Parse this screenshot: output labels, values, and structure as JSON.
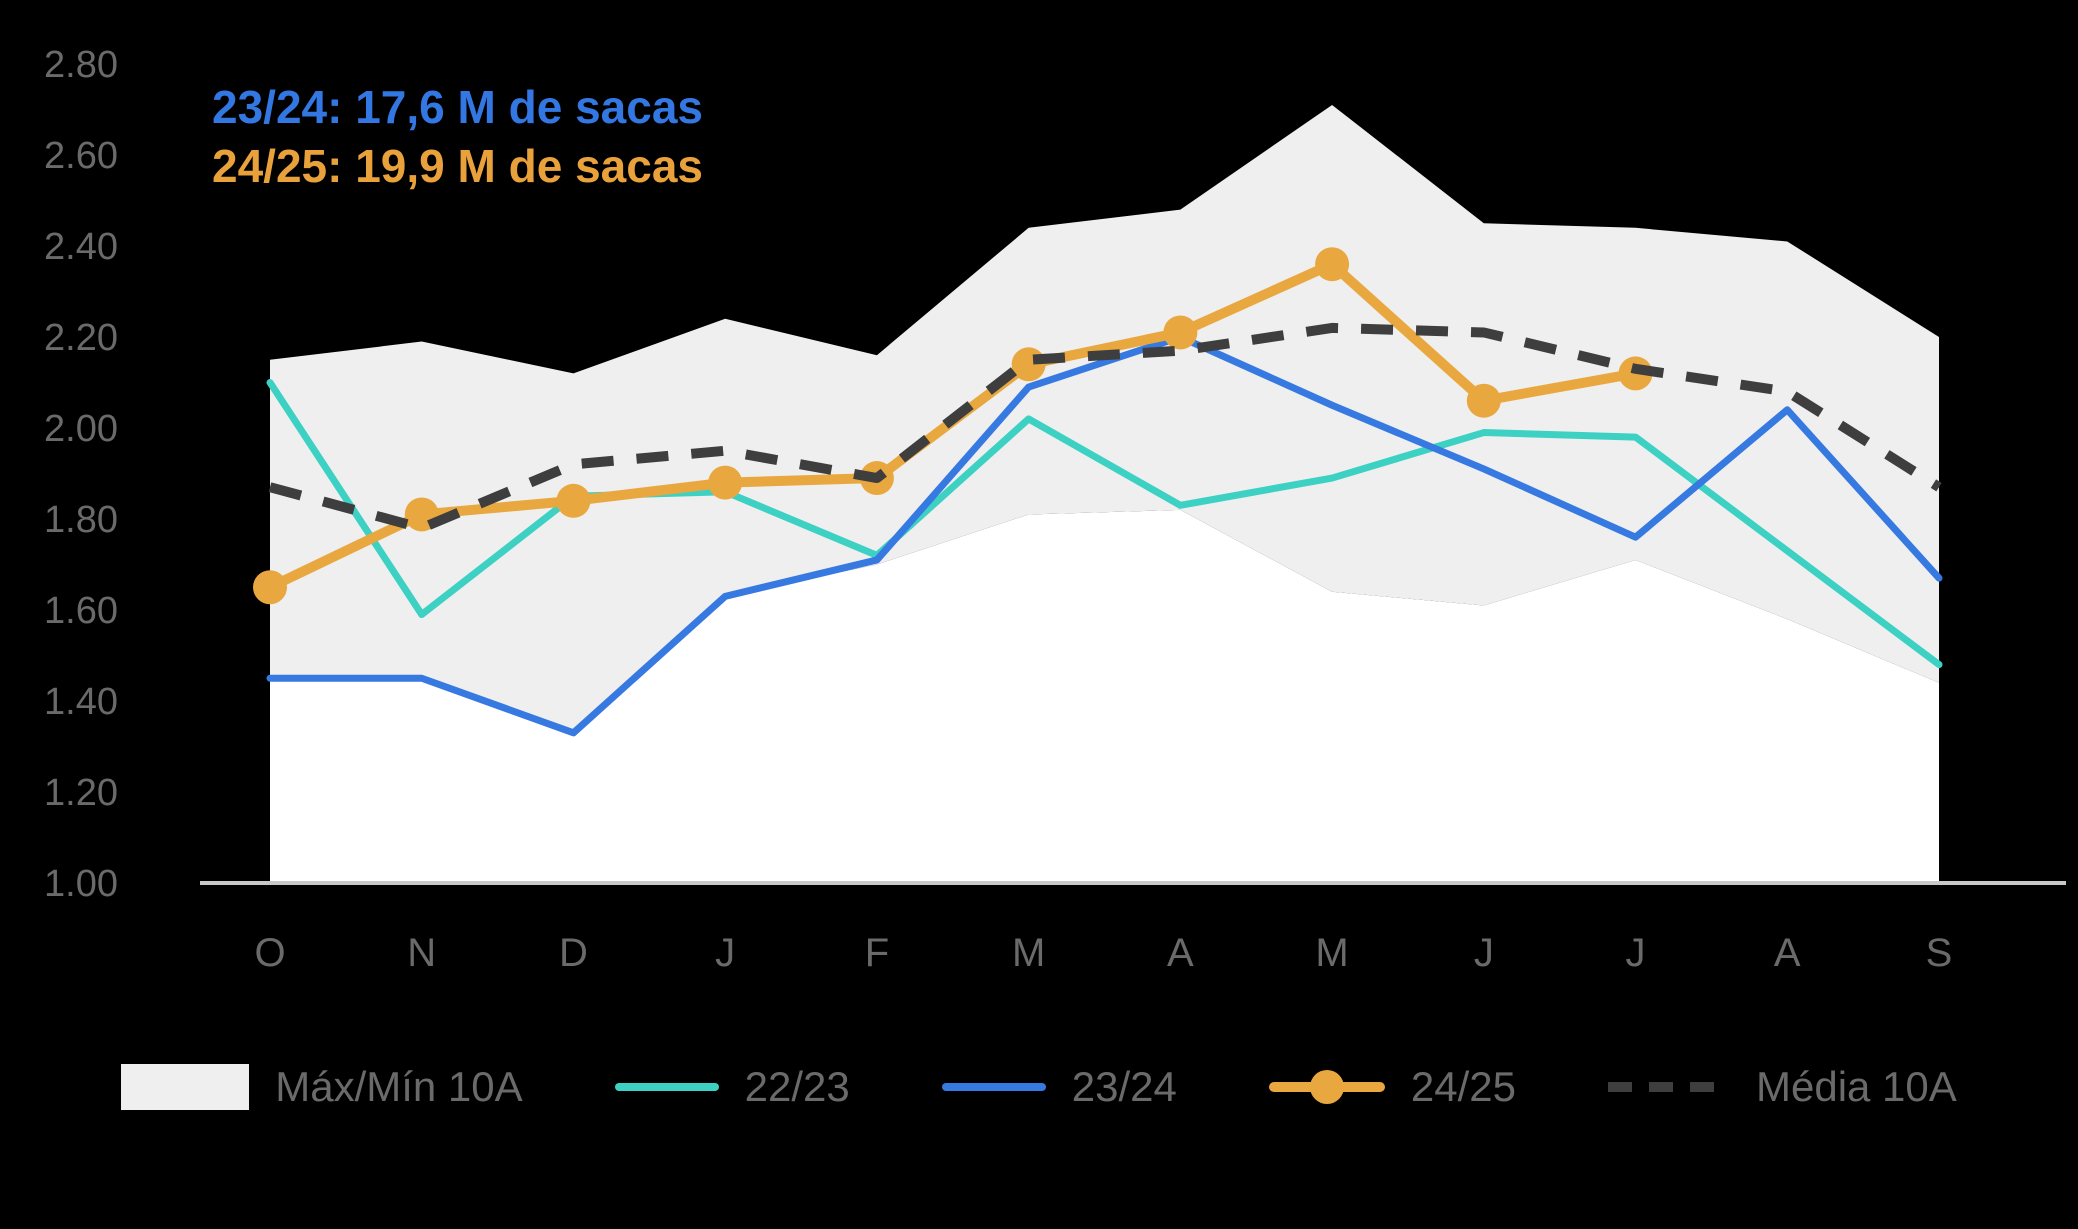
{
  "chart_data": {
    "type": "line",
    "categories": [
      "O",
      "N",
      "D",
      "J",
      "F",
      "M",
      "A",
      "M",
      "J",
      "J",
      "A",
      "S"
    ],
    "ylim": [
      1.0,
      2.8
    ],
    "ytick_step": 0.2,
    "ytick_format_decimals": 2,
    "grid": false,
    "background_color": "#000000",
    "plot_floor_color": "#FFFFFF",
    "axis_line_color": "#C8C8C8",
    "text_color": "#6A6A6A",
    "legend_position": "bottom",
    "series": [
      {
        "name": "Máx/Mín 10A",
        "type": "band",
        "color": "#EFEFEF",
        "max": [
          2.15,
          2.19,
          2.12,
          2.24,
          2.16,
          2.44,
          2.48,
          2.71,
          2.45,
          2.44,
          2.41,
          2.2
        ],
        "min": [
          1.45,
          1.45,
          1.33,
          1.63,
          1.7,
          1.81,
          1.82,
          1.64,
          1.61,
          1.71,
          1.58,
          1.44
        ]
      },
      {
        "name": "22/23",
        "type": "line",
        "color": "#3DD1C3",
        "width": 7,
        "values": [
          2.1,
          1.59,
          1.85,
          1.86,
          1.72,
          2.02,
          1.83,
          1.89,
          1.99,
          1.98,
          1.73,
          1.48
        ]
      },
      {
        "name": "23/24",
        "type": "line",
        "color": "#3679E0",
        "width": 7,
        "values": [
          1.45,
          1.45,
          1.33,
          1.63,
          1.71,
          2.09,
          2.2,
          2.05,
          1.91,
          1.76,
          2.04,
          1.67
        ]
      },
      {
        "name": "24/25",
        "type": "line",
        "color": "#E9A83F",
        "width": 10,
        "marker": true,
        "marker_radius": 17,
        "values": [
          1.65,
          1.81,
          1.84,
          1.88,
          1.89,
          2.14,
          2.21,
          2.36,
          2.06,
          2.12,
          null,
          null
        ]
      },
      {
        "name": "Média 10A",
        "type": "dashed",
        "color": "#3E3E3E",
        "width": 10,
        "values": [
          1.87,
          1.78,
          1.92,
          1.95,
          1.89,
          2.15,
          2.17,
          2.22,
          2.21,
          2.13,
          2.08,
          1.87
        ]
      }
    ],
    "annotations": [
      {
        "text": "23/24: 17,6 M de sacas",
        "color": "#3377E3"
      },
      {
        "text": "24/25: 19,9 M de sacas",
        "color": "#E9A13B"
      }
    ]
  },
  "legend": {
    "items": [
      {
        "label": "Máx/Mín 10A",
        "swatch": "band"
      },
      {
        "label": "22/23",
        "swatch": "line-teal"
      },
      {
        "label": "23/24",
        "swatch": "line-blue"
      },
      {
        "label": "24/25",
        "swatch": "line-orange-marker"
      },
      {
        "label": "Média 10A",
        "swatch": "dashed"
      }
    ]
  }
}
